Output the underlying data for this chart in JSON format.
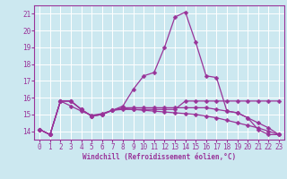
{
  "xlabel": "Windchill (Refroidissement éolien,°C)",
  "background_color": "#cce8f0",
  "line_color": "#993399",
  "grid_color": "#ffffff",
  "xlim": [
    -0.5,
    23.5
  ],
  "ylim": [
    13.5,
    21.5
  ],
  "yticks": [
    14,
    15,
    16,
    17,
    18,
    19,
    20,
    21
  ],
  "xticks": [
    0,
    1,
    2,
    3,
    4,
    5,
    6,
    7,
    8,
    9,
    10,
    11,
    12,
    13,
    14,
    15,
    16,
    17,
    18,
    19,
    20,
    21,
    22,
    23
  ],
  "series1_flat": [
    14.1,
    13.8,
    15.8,
    15.8,
    15.3,
    14.9,
    15.0,
    15.25,
    15.3,
    15.3,
    15.3,
    15.3,
    15.3,
    15.3,
    15.8,
    15.8,
    15.8,
    15.8,
    15.8,
    15.8,
    15.8,
    15.8,
    15.8,
    15.8
  ],
  "series2_peak": [
    14.1,
    13.8,
    15.8,
    15.8,
    15.3,
    14.9,
    15.0,
    15.25,
    15.5,
    16.5,
    17.3,
    17.5,
    19.0,
    20.8,
    21.1,
    19.3,
    17.3,
    17.2,
    15.2,
    15.1,
    14.8,
    14.1,
    13.8,
    13.8
  ],
  "series3_mid": [
    14.1,
    13.8,
    15.8,
    15.8,
    15.3,
    14.9,
    15.0,
    15.25,
    15.4,
    15.4,
    15.4,
    15.4,
    15.4,
    15.4,
    15.4,
    15.4,
    15.4,
    15.3,
    15.2,
    15.1,
    14.8,
    14.5,
    14.2,
    13.8
  ],
  "series4_diag": [
    14.1,
    13.8,
    15.8,
    15.5,
    15.2,
    14.95,
    15.05,
    15.25,
    15.35,
    15.3,
    15.25,
    15.2,
    15.15,
    15.1,
    15.05,
    15.0,
    14.9,
    14.8,
    14.65,
    14.5,
    14.35,
    14.2,
    14.0,
    13.8
  ],
  "marker_size": 2.5,
  "linewidth": 0.9,
  "xlabel_fontsize": 5.5,
  "tick_fontsize": 5.5
}
